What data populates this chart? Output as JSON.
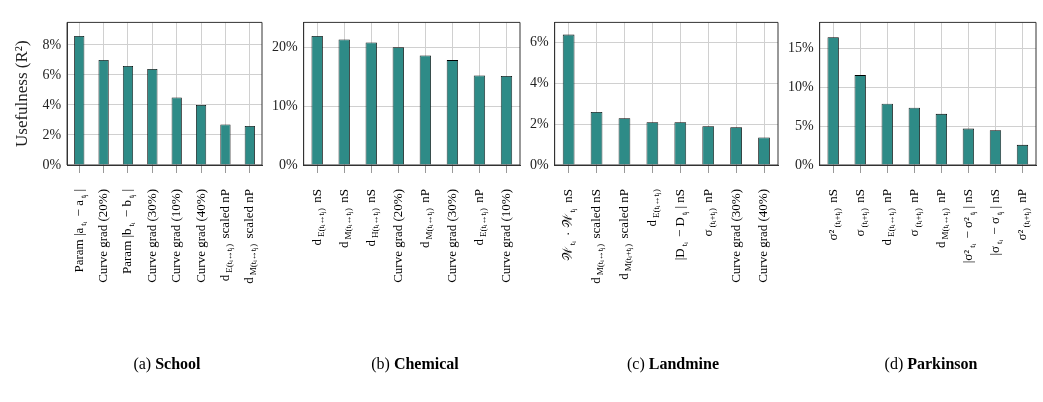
{
  "chart_data": [
    {
      "type": "bar",
      "title": "(a) School",
      "ylabel": "Usefulness (R²)",
      "categories": [
        "Param |a$_{tᵢ}$ − a$_{tⱼ}$|",
        "Curve grad (20%)",
        "Param |b$_{tᵢ}$ − b$_{tⱼ}$|",
        "Curve grad (30%)",
        "Curve grad (10%)",
        "Curve grad (40%)",
        "d$_{E(tᵢ↔tⱼ)}$ scaled nP",
        "d$_{M(tᵢ↔tⱼ)}$ scaled nP"
      ],
      "values": [
        8.6,
        7.0,
        6.6,
        6.4,
        4.5,
        4.0,
        2.7,
        2.6
      ],
      "color": "#2e8b87",
      "ylim": [
        0,
        9.5
      ],
      "yticks": [
        {
          "value": 0,
          "label": "0%"
        },
        {
          "value": 2,
          "label": "2%"
        },
        {
          "value": 4,
          "label": "4%"
        },
        {
          "value": 6,
          "label": "6%"
        },
        {
          "value": 8,
          "label": "8%"
        }
      ],
      "grid": true
    },
    {
      "type": "bar",
      "title": "(b) Chemical",
      "categories": [
        "d$_{E(tᵢ↔tⱼ)}$ nS",
        "d$_{M(tᵢ↔tⱼ)}$ nS",
        "d$_{H(tᵢ↔tⱼ)}$ nS",
        "Curve grad (20%)",
        "d$_{M(tᵢ↔tⱼ)}$ nP",
        "Curve grad (30%)",
        "d$_{E(tᵢ↔tⱼ)}$ nP",
        "Curve grad (10%)"
      ],
      "values": [
        21.9,
        21.3,
        20.8,
        20.0,
        18.6,
        17.8,
        15.2,
        15.1
      ],
      "color": "#2e8b87",
      "ylim": [
        0,
        24.2
      ],
      "yticks": [
        {
          "value": 0,
          "label": "0%"
        },
        {
          "value": 10,
          "label": "10%"
        },
        {
          "value": 20,
          "label": "20%"
        }
      ],
      "grid": true
    },
    {
      "type": "bar",
      "title": "(c) Landmine",
      "categories": [
        "𝒲$_{tᵢ}$ · 𝒲$_{tⱼ}$ nS",
        "d$_{M(tᵢ↔tⱼ)}$ scaled nS",
        "d$_{M(tᵢ+tⱼ)}$ scaled nP",
        "d$_{E(tᵢ↔tⱼ)}$",
        "|D$_{tᵢ}$ − D$_{tⱼ}$| nS",
        "σ$_{(tᵢ+tⱼ)}$ nP",
        "Curve grad (30%)",
        "Curve grad (40%)"
      ],
      "values": [
        6.4,
        2.6,
        2.3,
        2.1,
        2.1,
        1.9,
        1.85,
        1.35
      ],
      "color": "#2e8b87",
      "ylim": [
        0,
        7.0
      ],
      "yticks": [
        {
          "value": 0,
          "label": "0%"
        },
        {
          "value": 2,
          "label": "2%"
        },
        {
          "value": 4,
          "label": "4%"
        },
        {
          "value": 6,
          "label": "6%"
        }
      ],
      "grid": true
    },
    {
      "type": "bar",
      "title": "(d) Parkinson",
      "categories": [
        "σ²$_{(tᵢ+tⱼ)}$ nS",
        "σ$_{(tᵢ+tⱼ)}$ nS",
        "d$_{E(tᵢ↔tⱼ)}$ nP",
        "σ$_{(tᵢ+tⱼ)}$ nP",
        "d$_{M(tᵢ↔tⱼ)}$ nP",
        "|σ²$_{tᵢ}$ − σ²$_{tⱼ}$| nS",
        "|σ$_{tᵢ}$ − σ$_{tⱼ}$| nS",
        "σ²$_{(tᵢ+tⱼ)}$ nP"
      ],
      "values": [
        16.5,
        11.6,
        7.9,
        7.4,
        6.6,
        4.7,
        4.5,
        2.6
      ],
      "color": "#2e8b87",
      "ylim": [
        0,
        18.4
      ],
      "yticks": [
        {
          "value": 0,
          "label": "0%"
        },
        {
          "value": 5,
          "label": "5%"
        },
        {
          "value": 10,
          "label": "10%"
        },
        {
          "value": 15,
          "label": "15%"
        }
      ],
      "grid": true
    }
  ]
}
